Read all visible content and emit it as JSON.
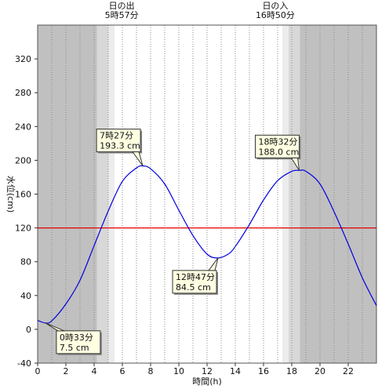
{
  "chart_data": {
    "type": "line",
    "xlabel": "時間(h)",
    "ylabel": "水位(cm)",
    "xlim": [
      0,
      24
    ],
    "ylim": [
      -40,
      360
    ],
    "x_ticks": [
      0,
      2,
      4,
      6,
      8,
      10,
      12,
      14,
      16,
      18,
      20,
      22
    ],
    "y_ticks": [
      -40,
      0,
      40,
      80,
      120,
      160,
      200,
      240,
      280,
      320
    ],
    "grid": "vertical dotted lines each hour",
    "reference_line": {
      "y": 120,
      "color": "#e00000"
    },
    "daylight": {
      "sunrise": {
        "label": "日の出",
        "time": "5時57分",
        "hour": 5.95
      },
      "sunset": {
        "label": "日の入",
        "time": "16時50分",
        "hour": 16.83
      }
    },
    "shading_colors": {
      "night": "#c0c0c0",
      "twilight_dark": "#d8d8d8",
      "twilight_light": "#ececec",
      "day": "#ffffff"
    },
    "series": [
      {
        "color": "#0000e0",
        "x": [
          0,
          0.55,
          1,
          2,
          3,
          4,
          5,
          6,
          7,
          7.45,
          8,
          9,
          10,
          11,
          12,
          12.78,
          13.5,
          14,
          15,
          16,
          17,
          18,
          18.53,
          19,
          20,
          21,
          22,
          23,
          24
        ],
        "y": [
          10.5,
          7.5,
          10,
          30,
          58,
          99,
          140,
          175,
          191,
          193.3,
          190,
          172,
          141,
          111,
          89,
          84.5,
          89,
          98,
          124,
          153,
          176,
          187,
          188,
          187,
          172,
          139,
          101,
          61,
          28
        ]
      }
    ],
    "annotations": [
      {
        "time": "0時33分",
        "value": "7.5 cm",
        "x": 0.55,
        "y": 7.5
      },
      {
        "time": "7時27分",
        "value": "193.3 cm",
        "x": 7.45,
        "y": 193.3
      },
      {
        "time": "12時47分",
        "value": "84.5 cm",
        "x": 12.78,
        "y": 84.5
      },
      {
        "time": "18時32分",
        "value": "188.0 cm",
        "x": 18.53,
        "y": 188.0
      }
    ]
  }
}
